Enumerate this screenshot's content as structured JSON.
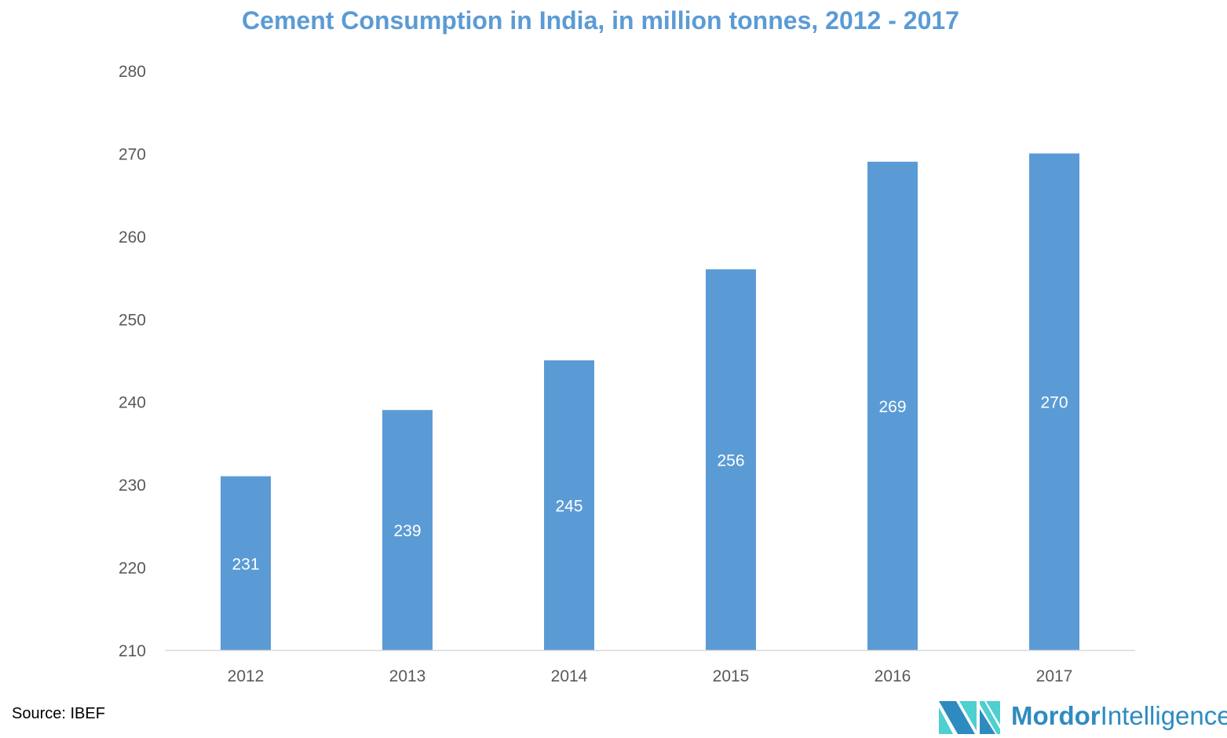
{
  "chart_data": {
    "type": "bar",
    "title": "Cement Consumption in India, in million tonnes, 2012 - 2017",
    "categories": [
      "2012",
      "2013",
      "2014",
      "2015",
      "2016",
      "2017"
    ],
    "values": [
      231,
      239,
      245,
      256,
      269,
      270
    ],
    "data_labels": [
      "231",
      "239",
      "245",
      "256",
      "269",
      "270"
    ],
    "ylim": [
      210,
      280
    ],
    "yticks": [
      "210",
      "220",
      "230",
      "240",
      "250",
      "260",
      "270",
      "280"
    ],
    "xlabel": "",
    "ylabel": "",
    "grid": false,
    "colors": {
      "bar": "#5b9bd5",
      "title": "#5b9bd5",
      "label": "#ffffff",
      "axis_text": "#595959"
    }
  },
  "source": "Source: IBEF",
  "logo": {
    "word1": "Mordor",
    "word2": "Intelligence",
    "colors": [
      "#2e8bc0",
      "#4ecfd0"
    ]
  }
}
